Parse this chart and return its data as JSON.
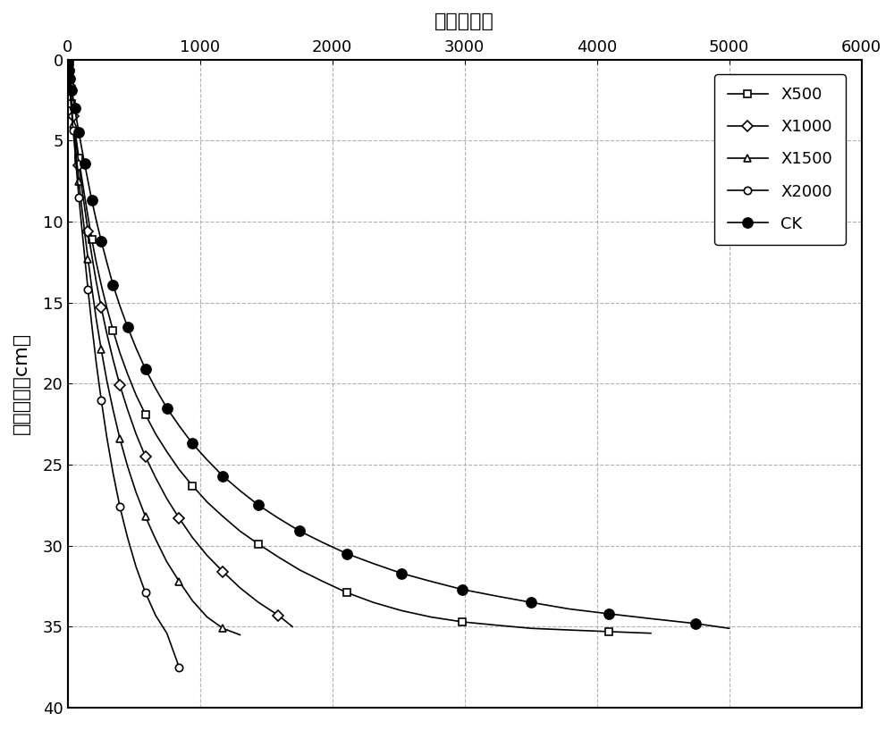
{
  "title": "时间（分）",
  "ylabel": "入渗深度（cm）",
  "xlim": [
    0,
    6000
  ],
  "ylim": [
    40,
    0
  ],
  "xticks": [
    0,
    1000,
    2000,
    3000,
    4000,
    5000,
    6000
  ],
  "yticks": [
    0,
    5,
    10,
    15,
    20,
    25,
    30,
    35,
    40
  ],
  "grid_color": "#aaaaaa",
  "background_color": "#ffffff",
  "X500": {
    "time": [
      1,
      2,
      4,
      6,
      9,
      13,
      18,
      24,
      32,
      42,
      54,
      68,
      85,
      105,
      128,
      154,
      183,
      216,
      254,
      296,
      343,
      395,
      453,
      517,
      588,
      665,
      750,
      843,
      944,
      1054,
      1174,
      1303,
      1443,
      1593,
      1755,
      1928,
      2113,
      2311,
      2522,
      2746,
      2984,
      3237,
      3505,
      3789,
      4090,
      4408
    ],
    "depth": [
      0.1,
      0.2,
      0.4,
      0.6,
      0.9,
      1.2,
      1.6,
      2.1,
      2.7,
      3.4,
      4.2,
      5.1,
      6.1,
      7.2,
      8.4,
      9.7,
      11.1,
      12.5,
      13.9,
      15.3,
      16.7,
      18.1,
      19.4,
      20.7,
      21.9,
      23.1,
      24.2,
      25.3,
      26.3,
      27.3,
      28.2,
      29.1,
      29.9,
      30.7,
      31.5,
      32.2,
      32.9,
      33.5,
      34.0,
      34.4,
      34.7,
      34.9,
      35.1,
      35.2,
      35.3,
      35.4
    ],
    "label": "X500",
    "marker": "s",
    "markersize": 6,
    "markerfacecolor": "white",
    "markeredgecolor": "#000000",
    "markevery": 4
  },
  "X1000": {
    "time": [
      1,
      2,
      4,
      6,
      9,
      13,
      18,
      24,
      32,
      42,
      54,
      68,
      85,
      105,
      128,
      154,
      183,
      216,
      254,
      296,
      343,
      395,
      453,
      517,
      588,
      665,
      750,
      843,
      944,
      1054,
      1174,
      1303,
      1443,
      1593,
      1700
    ],
    "depth": [
      0.1,
      0.2,
      0.4,
      0.6,
      0.9,
      1.2,
      1.6,
      2.1,
      2.7,
      3.5,
      4.4,
      5.4,
      6.5,
      7.8,
      9.1,
      10.6,
      12.1,
      13.7,
      15.3,
      16.9,
      18.5,
      20.1,
      21.6,
      23.1,
      24.5,
      25.8,
      27.1,
      28.3,
      29.5,
      30.6,
      31.6,
      32.6,
      33.5,
      34.3,
      35.0
    ],
    "label": "X1000",
    "marker": "D",
    "markersize": 6,
    "markerfacecolor": "white",
    "markeredgecolor": "#000000",
    "markevery": 3
  },
  "X1500": {
    "time": [
      1,
      2,
      4,
      6,
      9,
      13,
      18,
      24,
      32,
      42,
      54,
      68,
      85,
      105,
      128,
      154,
      183,
      216,
      254,
      296,
      343,
      395,
      453,
      517,
      588,
      665,
      750,
      843,
      944,
      1054,
      1174,
      1303
    ],
    "depth": [
      0.1,
      0.2,
      0.4,
      0.7,
      1.0,
      1.4,
      1.8,
      2.4,
      3.1,
      4.0,
      5.0,
      6.2,
      7.5,
      9.0,
      10.6,
      12.3,
      14.1,
      16.0,
      17.9,
      19.8,
      21.6,
      23.4,
      25.1,
      26.7,
      28.2,
      29.6,
      31.0,
      32.2,
      33.4,
      34.4,
      35.1,
      35.5
    ],
    "label": "X1500",
    "marker": "^",
    "markersize": 6,
    "markerfacecolor": "white",
    "markeredgecolor": "#000000",
    "markevery": 3
  },
  "X2000": {
    "time": [
      1,
      2,
      4,
      6,
      9,
      13,
      18,
      24,
      32,
      42,
      54,
      68,
      85,
      105,
      128,
      154,
      183,
      216,
      254,
      296,
      343,
      395,
      453,
      517,
      588,
      665,
      750,
      843
    ],
    "depth": [
      0.1,
      0.2,
      0.4,
      0.7,
      1.0,
      1.4,
      1.9,
      2.6,
      3.4,
      4.4,
      5.5,
      6.9,
      8.5,
      10.2,
      12.1,
      14.2,
      16.4,
      18.7,
      21.0,
      23.3,
      25.5,
      27.6,
      29.5,
      31.3,
      32.9,
      34.3,
      35.4,
      37.5
    ],
    "label": "X2000",
    "marker": "o",
    "markersize": 6,
    "markerfacecolor": "white",
    "markeredgecolor": "#000000",
    "markevery": 3
  },
  "CK": {
    "time": [
      1,
      2,
      4,
      6,
      9,
      13,
      18,
      24,
      32,
      42,
      54,
      68,
      85,
      105,
      128,
      154,
      183,
      216,
      254,
      296,
      343,
      395,
      453,
      517,
      588,
      665,
      750,
      843,
      944,
      1054,
      1174,
      1303,
      1443,
      1593,
      1755,
      1928,
      2113,
      2311,
      2522,
      2746,
      2984,
      3237,
      3505,
      3789,
      4090,
      4408,
      4744,
      5000
    ],
    "depth": [
      0.1,
      0.2,
      0.3,
      0.5,
      0.7,
      0.9,
      1.2,
      1.5,
      1.9,
      2.4,
      3.0,
      3.7,
      4.5,
      5.4,
      6.4,
      7.5,
      8.7,
      9.9,
      11.2,
      12.5,
      13.9,
      15.2,
      16.5,
      17.8,
      19.1,
      20.3,
      21.5,
      22.6,
      23.7,
      24.7,
      25.7,
      26.6,
      27.5,
      28.3,
      29.1,
      29.8,
      30.5,
      31.1,
      31.7,
      32.2,
      32.7,
      33.1,
      33.5,
      33.9,
      34.2,
      34.5,
      34.8,
      35.1
    ],
    "label": "CK",
    "marker": "o",
    "markersize": 8,
    "markerfacecolor": "#000000",
    "markeredgecolor": "#000000",
    "markevery": 2
  }
}
